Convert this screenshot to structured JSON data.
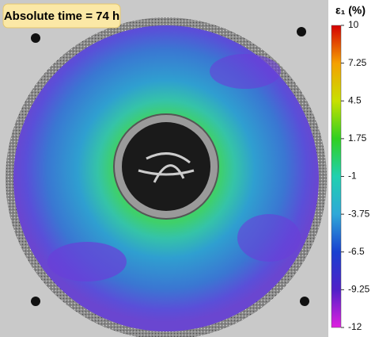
{
  "label": "Absolute time = 74 h",
  "colorbar": {
    "title": "ε₁ (%)",
    "lim": [
      -12,
      10
    ],
    "ticks": [
      10,
      7.25,
      4.5,
      1.75,
      -1,
      -3.75,
      -6.5,
      -9.25,
      -12
    ]
  }
}
